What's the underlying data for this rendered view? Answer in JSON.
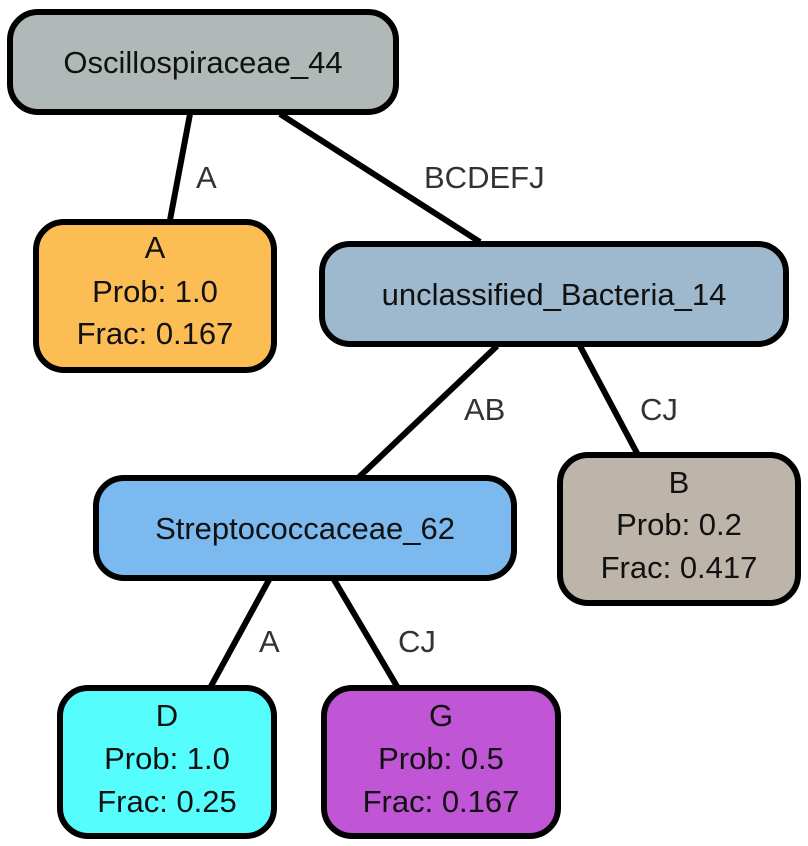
{
  "nodes": {
    "root": {
      "lines": [
        "Oscillospiraceae_44"
      ],
      "color": "#b0b9b7"
    },
    "leafA": {
      "lines": [
        "A",
        "Prob: 1.0",
        "Frac: 0.167"
      ],
      "color": "#fdbd55"
    },
    "unc": {
      "lines": [
        "unclassified_Bacteria_14"
      ],
      "color": "#9eb8cd"
    },
    "strep": {
      "lines": [
        "Streptococcaceae_62"
      ],
      "color": "#7cb9ee"
    },
    "leafB": {
      "lines": [
        "B",
        "Prob: 0.2",
        "Frac: 0.417"
      ],
      "color": "#bdb5aa"
    },
    "leafD": {
      "lines": [
        "D",
        "Prob: 1.0",
        "Frac: 0.25"
      ],
      "color": "#55fdfd"
    },
    "leafG": {
      "lines": [
        "G",
        "Prob: 0.5",
        "Frac: 0.167"
      ],
      "color": "#c055d5"
    }
  },
  "edges": [
    {
      "from": "root",
      "to": "leafA",
      "label": "A"
    },
    {
      "from": "root",
      "to": "unc",
      "label": "BCDEFJ"
    },
    {
      "from": "unc",
      "to": "strep",
      "label": "AB"
    },
    {
      "from": "unc",
      "to": "leafB",
      "label": "CJ"
    },
    {
      "from": "strep",
      "to": "leafD",
      "label": "A"
    },
    {
      "from": "strep",
      "to": "leafG",
      "label": "CJ"
    }
  ]
}
